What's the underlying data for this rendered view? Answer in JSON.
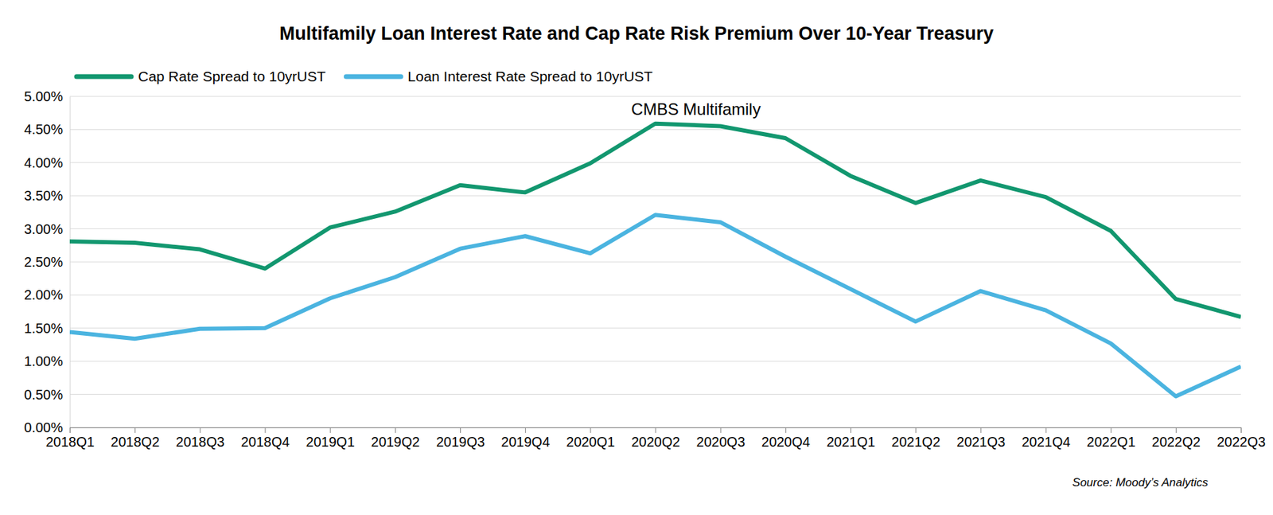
{
  "chart_data": {
    "type": "line",
    "title": "Multifamily Loan Interest Rate and Cap Rate Risk Premium Over 10-Year Treasury",
    "annotation": "CMBS Multifamily",
    "source": "Source: Moody’s Analytics",
    "categories": [
      "2018Q1",
      "2018Q2",
      "2018Q3",
      "2018Q4",
      "2019Q1",
      "2019Q2",
      "2019Q3",
      "2019Q4",
      "2020Q1",
      "2020Q2",
      "2020Q3",
      "2020Q4",
      "2021Q1",
      "2021Q2",
      "2021Q3",
      "2021Q4",
      "2022Q1",
      "2022Q2",
      "2022Q3"
    ],
    "series": [
      {
        "name": "Cap Rate Spread to 10yrUST",
        "color": "#12976f",
        "values": [
          2.81,
          2.79,
          2.69,
          2.4,
          3.02,
          3.26,
          3.66,
          3.55,
          3.99,
          4.59,
          4.55,
          4.37,
          3.8,
          3.39,
          3.73,
          3.48,
          2.97,
          1.94,
          1.67
        ]
      },
      {
        "name": "Loan Interest Rate Spread to 10yrUST",
        "color": "#4bb4e0",
        "values": [
          1.44,
          1.34,
          1.49,
          1.5,
          1.95,
          2.27,
          2.7,
          2.89,
          2.63,
          3.21,
          3.1,
          2.58,
          2.09,
          1.6,
          2.06,
          1.77,
          1.27,
          0.47,
          0.92
        ]
      }
    ],
    "ylim": [
      0,
      5
    ],
    "yticks": [
      {
        "value": 0,
        "label": "0.00%"
      },
      {
        "value": 0.5,
        "label": "0.50%"
      },
      {
        "value": 1,
        "label": "1.00%"
      },
      {
        "value": 1.5,
        "label": "1.50%"
      },
      {
        "value": 2,
        "label": "2.00%"
      },
      {
        "value": 2.5,
        "label": "2.50%"
      },
      {
        "value": 3,
        "label": "3.00%"
      },
      {
        "value": 3.5,
        "label": "3.50%"
      },
      {
        "value": 4,
        "label": "4.00%"
      },
      {
        "value": 4.5,
        "label": "4.50%"
      },
      {
        "value": 5,
        "label": "5.00%"
      }
    ],
    "grid": true,
    "legend": "top-left"
  }
}
